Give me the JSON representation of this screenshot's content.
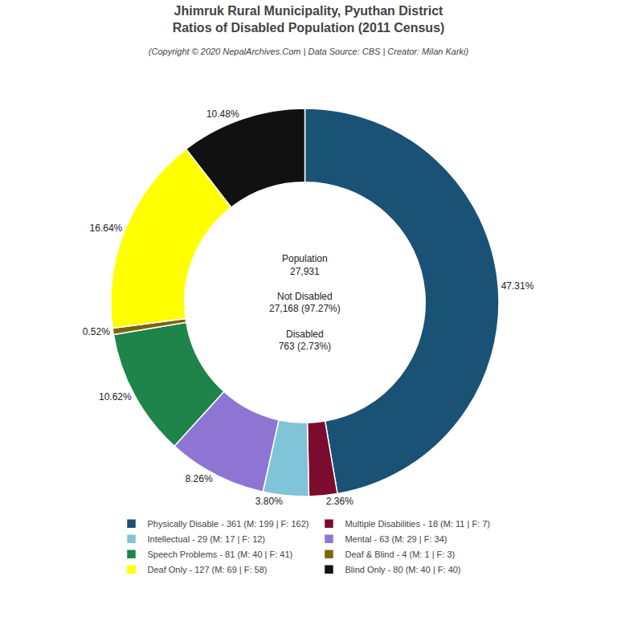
{
  "chart_data": {
    "type": "pie",
    "title": "Jhimruk Rural Municipality, Pyuthan District\nRatios of Disabled Population (2011 Census)",
    "subtitle": "(Copyright © 2020 NepalArchives.Com | Data Source: CBS | Creator: Milan Karki)",
    "categories": [
      "Physically Disable - 361 (M: 199 | F: 162)",
      "Multiple Disabilities - 18 (M: 11 | F: 7)",
      "Intellectual - 29 (M: 17 | F: 12)",
      "Mental - 63 (M: 29 | F: 34)",
      "Speech Problems - 81 (M: 40 | F: 41)",
      "Deaf & Blind - 4 (M: 1 | F: 3)",
      "Deaf Only - 127 (M: 69 | F: 58)",
      "Blind Only - 80 (M: 40 | F: 40)"
    ],
    "values": [
      47.31,
      2.36,
      3.8,
      8.26,
      10.62,
      0.52,
      16.64,
      10.48
    ],
    "value_labels": [
      "47.31%",
      "2.36%",
      "3.80%",
      "8.26%",
      "10.62%",
      "0.52%",
      "16.64%",
      "10.48%"
    ],
    "colors": [
      "#1a5276",
      "#7b0c2e",
      "#7fc4d8",
      "#8e75d4",
      "#1e8449",
      "#7d6608",
      "#ffff00",
      "#111111"
    ],
    "annotations": [
      "Population\n27,931\n\nNot Disabled\n27,168 (97.27%)\n\nDisabled\n763 (2.73%)"
    ],
    "data_labels": true,
    "legend": "bottom"
  }
}
